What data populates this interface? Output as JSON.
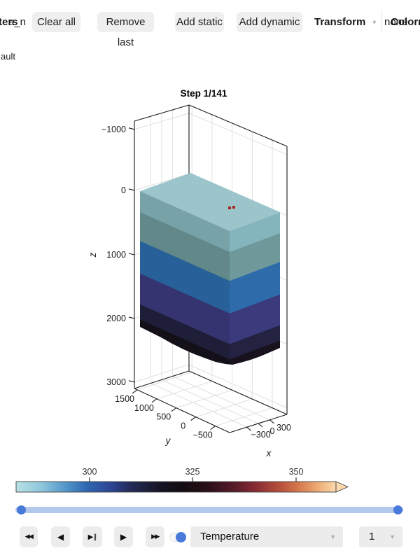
{
  "toolbar": {
    "left_overlap": {
      "bold": "tters",
      "regular": "a_n"
    },
    "buttons": [
      {
        "label": "Clear all"
      },
      {
        "label": "Remove last"
      },
      {
        "label": "Add static"
      },
      {
        "label": "Add dynamic"
      }
    ],
    "transform_label": "Transform",
    "caret": "▼",
    "right_overlap": {
      "regular": "none",
      "bold": "Colorm"
    }
  },
  "side_label": "ault",
  "chart_data": {
    "type": "contour3d-volume",
    "title": "Step 1/141",
    "axes": {
      "x": {
        "label": "x",
        "ticks": [
          "−300",
          "0",
          "300"
        ]
      },
      "y": {
        "label": "y",
        "ticks": [
          "1500",
          "1000",
          "500",
          "0",
          "−500"
        ]
      },
      "z": {
        "label": "z",
        "ticks": [
          "−1000",
          "0",
          "1000",
          "2000",
          "3000"
        ],
        "reversed": true
      }
    },
    "volume": {
      "top_color": "#9cc5cb",
      "marker_color": "#a5291f",
      "bands": [
        {
          "z_from": 0,
          "z_to": 330,
          "color": "#84b5bc"
        },
        {
          "z_from": 330,
          "z_to": 780,
          "color": "#6e989a"
        },
        {
          "z_from": 780,
          "z_to": 1290,
          "color": "#2d6bab"
        },
        {
          "z_from": 1290,
          "z_to": 1770,
          "color": "#3b3a7d"
        },
        {
          "z_from": 1770,
          "z_to": 2010,
          "color": "#232240"
        },
        {
          "z_from": 2010,
          "z_to": 2260,
          "color": "#17121d"
        },
        {
          "z_from": 2260,
          "z_to": 2400,
          "color": "#2b1020"
        },
        {
          "z_from": 2400,
          "z_to": 2500,
          "color": "#451629"
        },
        {
          "z_from": 2500,
          "z_to": 2590,
          "color": "#5d1c33"
        },
        {
          "z_from": 2590,
          "z_to": 2670,
          "color": "#75233e"
        },
        {
          "z_from": 2670,
          "z_to": 2750,
          "color": "#8b2c48"
        }
      ]
    },
    "colorbar": {
      "ticks": [
        "300",
        "325",
        "350"
      ],
      "tick_values": [
        300,
        325,
        350
      ],
      "gradient": [
        {
          "o": 0.0,
          "c": "#b9e1e6"
        },
        {
          "o": 0.08,
          "c": "#8ec6dc"
        },
        {
          "o": 0.16,
          "c": "#4f93c8"
        },
        {
          "o": 0.22,
          "c": "#2f67b2"
        },
        {
          "o": 0.3,
          "c": "#2c4391"
        },
        {
          "o": 0.36,
          "c": "#232a55"
        },
        {
          "o": 0.45,
          "c": "#151325"
        },
        {
          "o": 0.52,
          "c": "#120c10"
        },
        {
          "o": 0.6,
          "c": "#2a0f18"
        },
        {
          "o": 0.68,
          "c": "#551a28"
        },
        {
          "o": 0.75,
          "c": "#882c33"
        },
        {
          "o": 0.82,
          "c": "#b44d3b"
        },
        {
          "o": 0.88,
          "c": "#d4764b"
        },
        {
          "o": 0.94,
          "c": "#eda973"
        },
        {
          "o": 1.0,
          "c": "#fbd9ad"
        }
      ]
    }
  },
  "range_slider": {
    "track_color": "#b4c7ed",
    "handle_color": "#4a7ad9"
  },
  "player": {
    "buttons": [
      {
        "name": "rewind",
        "glyph": "◀◀"
      },
      {
        "name": "step-back",
        "glyph": "◀"
      },
      {
        "name": "play-pause",
        "glyph": "▶‖"
      },
      {
        "name": "play",
        "glyph": "▶"
      },
      {
        "name": "fast-forward",
        "glyph": "▶▶"
      }
    ],
    "toggle_on": true,
    "field_dropdown": {
      "value": "Temperature"
    },
    "speed_dropdown": {
      "value": "1"
    }
  }
}
